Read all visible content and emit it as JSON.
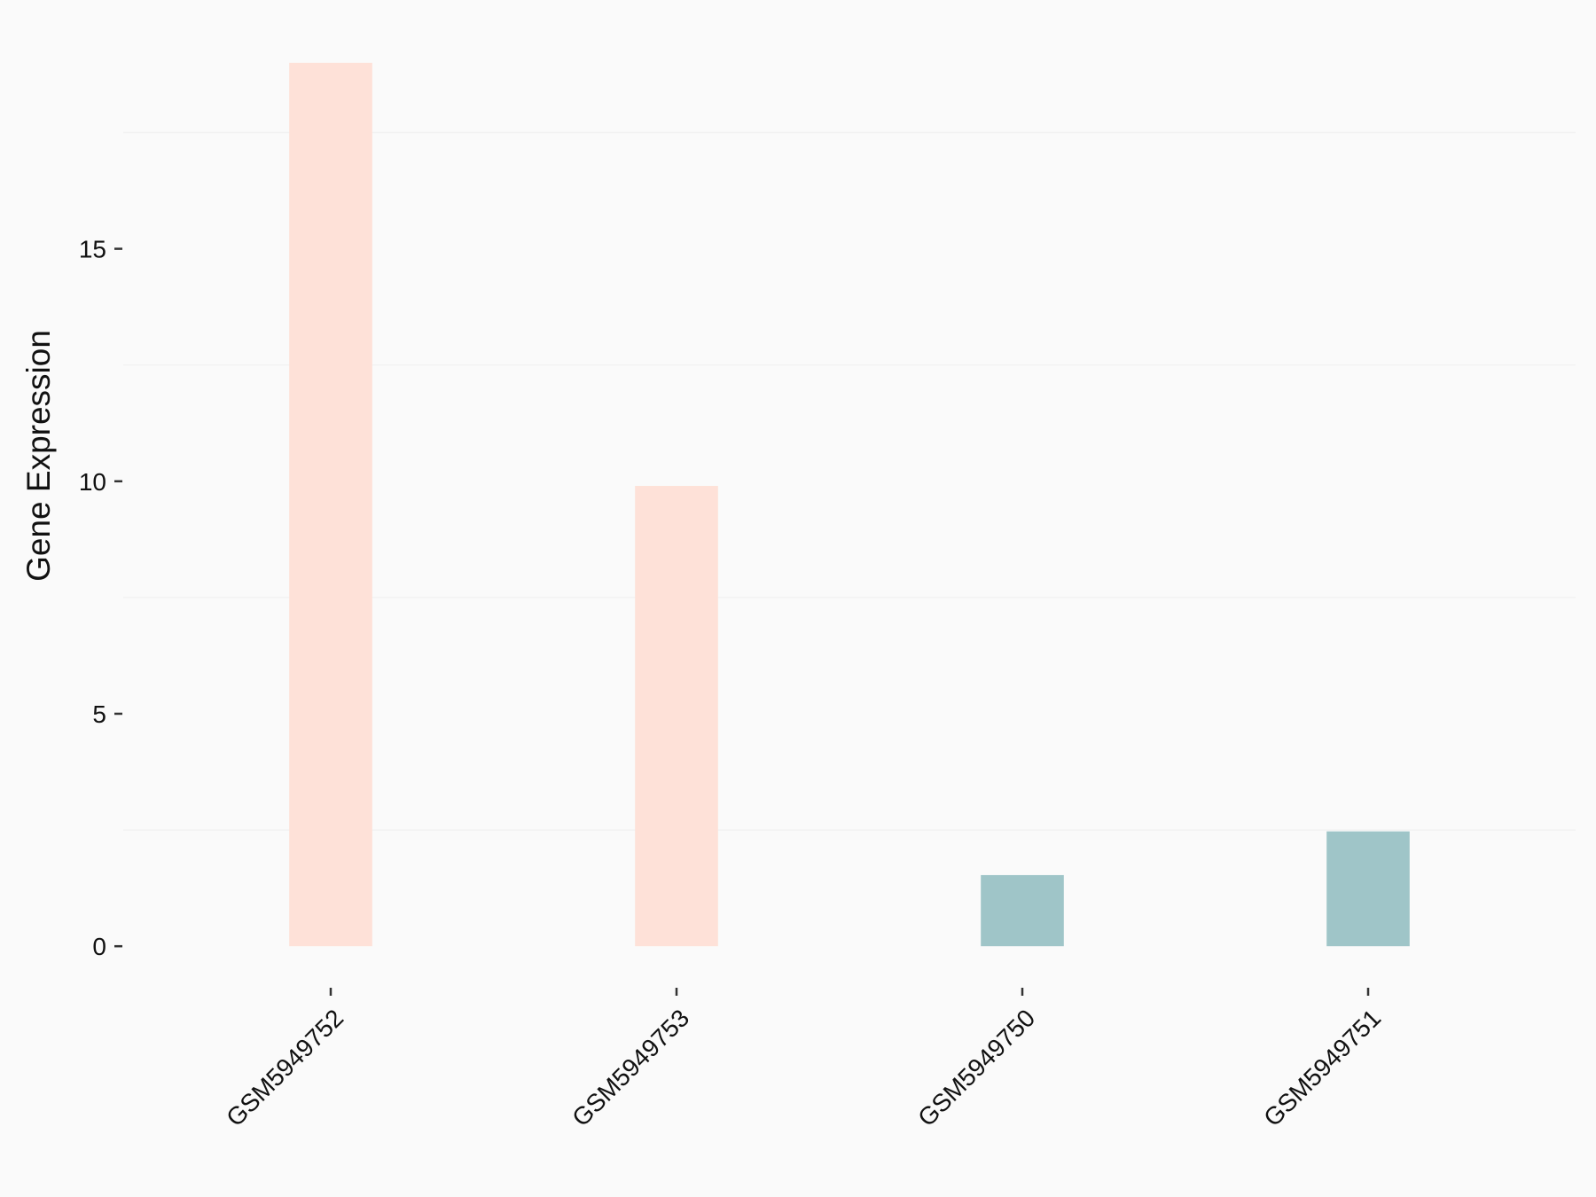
{
  "chart_data": {
    "type": "bar",
    "y_label": "Gene Expression",
    "categories": [
      "GSM5949752",
      "GSM5949753",
      "GSM5949750",
      "GSM5949751"
    ],
    "values": [
      19.0,
      9.9,
      1.53,
      2.47
    ],
    "colors": [
      "#fee1d8",
      "#fee1d8",
      "#9fc5c8",
      "#9fc5c8"
    ],
    "ylim": [
      -0.95,
      19.95
    ],
    "yticks": [
      0,
      5,
      10,
      15
    ],
    "minor_grid": [
      2.5,
      7.5,
      12.5,
      17.5
    ],
    "grid": true
  }
}
